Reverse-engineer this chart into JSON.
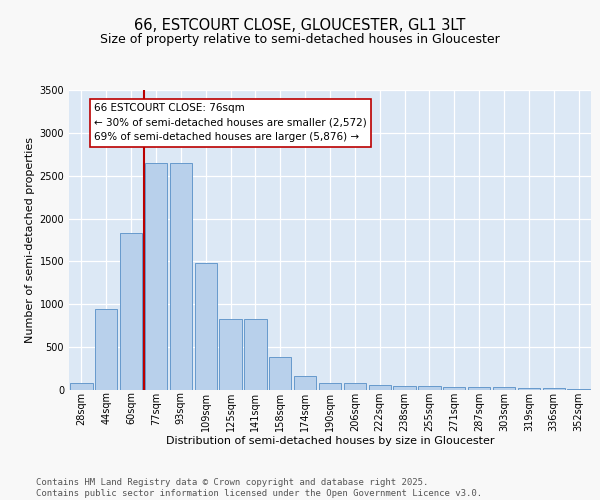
{
  "title_line1": "66, ESTCOURT CLOSE, GLOUCESTER, GL1 3LT",
  "title_line2": "Size of property relative to semi-detached houses in Gloucester",
  "xlabel": "Distribution of semi-detached houses by size in Gloucester",
  "ylabel": "Number of semi-detached properties",
  "categories": [
    "28sqm",
    "44sqm",
    "60sqm",
    "77sqm",
    "93sqm",
    "109sqm",
    "125sqm",
    "141sqm",
    "158sqm",
    "174sqm",
    "190sqm",
    "206sqm",
    "222sqm",
    "238sqm",
    "255sqm",
    "271sqm",
    "287sqm",
    "303sqm",
    "319sqm",
    "336sqm",
    "352sqm"
  ],
  "values": [
    80,
    950,
    1830,
    2650,
    2650,
    1480,
    830,
    830,
    380,
    160,
    80,
    80,
    55,
    45,
    45,
    30,
    35,
    30,
    25,
    20,
    15
  ],
  "bar_color": "#b8d0eb",
  "bar_edge_color": "#6699cc",
  "vline_pos": 2.5,
  "vline_color": "#bb0000",
  "annotation_text": "66 ESTCOURT CLOSE: 76sqm\n← 30% of semi-detached houses are smaller (2,572)\n69% of semi-detached houses are larger (5,876) →",
  "ylim": [
    0,
    3500
  ],
  "yticks": [
    0,
    500,
    1000,
    1500,
    2000,
    2500,
    3000,
    3500
  ],
  "bg_color": "#dce8f5",
  "fig_bg": "#f8f8f8",
  "grid_color": "#ffffff",
  "title_fontsize": 10.5,
  "subtitle_fontsize": 9,
  "axis_label_fontsize": 8,
  "tick_fontsize": 7,
  "annot_fontsize": 7.5,
  "footer_fontsize": 6.5,
  "footer_text": "Contains HM Land Registry data © Crown copyright and database right 2025.\nContains public sector information licensed under the Open Government Licence v3.0."
}
